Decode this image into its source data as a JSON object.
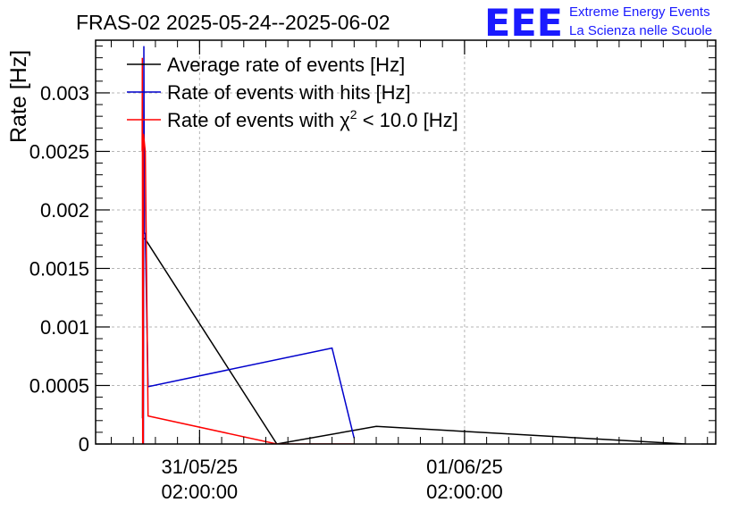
{
  "logo": {
    "mark": "EEE",
    "line1": "Extreme Energy Events",
    "line2": "La Scienza nelle Scuole",
    "color": "#1a1aff"
  },
  "chart_data": {
    "type": "line",
    "title": "FRAS-02 2025-05-24--2025-06-02",
    "xlabel": "",
    "ylabel": "Rate [Hz]",
    "ylim": [
      0,
      0.00345
    ],
    "xlim": [
      "2025-05-30 16:35:00",
      "2025-06-02 00:45:00"
    ],
    "yticks": [
      "0",
      "0.0005",
      "0.001",
      "0.0015",
      "0.002",
      "0.0025",
      "0.003"
    ],
    "xticks": [
      {
        "x": "2025-05-31 02:00:00",
        "date": "31/05/25",
        "time": "02:00:00"
      },
      {
        "x": "2025-06-01 02:00:00",
        "date": "01/06/25",
        "time": "02:00:00"
      }
    ],
    "grid": true,
    "legend_position": "top-left",
    "series": [
      {
        "name": "Average rate of events [Hz]",
        "color": "#000000",
        "points": [
          [
            "2025-05-30 20:50:00",
            0.00022
          ],
          [
            "2025-05-30 20:53:00",
            0.00176
          ],
          [
            "2025-05-30 21:05:00",
            0.00175
          ],
          [
            "2025-05-31 09:00:00",
            0.0
          ],
          [
            "2025-05-31 18:00:00",
            0.00015
          ],
          [
            "2025-06-01 22:00:00",
            0.0
          ]
        ]
      },
      {
        "name": "Rate of events with hits [Hz]",
        "color": "#0000cc",
        "points": [
          [
            "2025-05-30 20:55:00",
            0.0
          ],
          [
            "2025-05-30 20:57:00",
            0.0034
          ],
          [
            "2025-05-30 21:00:00",
            0.0018
          ],
          [
            "2025-05-30 21:05:00",
            0.0018
          ],
          [
            "2025-05-30 21:20:00",
            0.00049
          ],
          [
            "2025-05-31 14:00:00",
            0.00082
          ],
          [
            "2025-05-31 16:00:00",
            5e-05
          ]
        ]
      },
      {
        "name": "Rate of events with χ² < 10.0 [Hz]",
        "legend_prefix": "Rate of events with ",
        "legend_chi": "χ",
        "legend_sup": "2",
        "legend_suffix": " < 10.0 [Hz]",
        "color": "#ff0000",
        "points": [
          [
            "2025-05-30 20:48:00",
            0.0025
          ],
          [
            "2025-05-30 20:49:00",
            0.0033
          ],
          [
            "2025-05-30 20:51:00",
            0.0
          ],
          [
            "2025-05-30 20:54:00",
            0.0
          ],
          [
            "2025-05-30 20:55:00",
            0.00265
          ],
          [
            "2025-05-30 21:05:00",
            0.0025
          ],
          [
            "2025-05-30 21:20:00",
            0.00024
          ],
          [
            "2025-05-31 09:00:00",
            0.0
          ],
          [
            "2025-05-31 16:00:00",
            0.0
          ]
        ]
      }
    ]
  }
}
